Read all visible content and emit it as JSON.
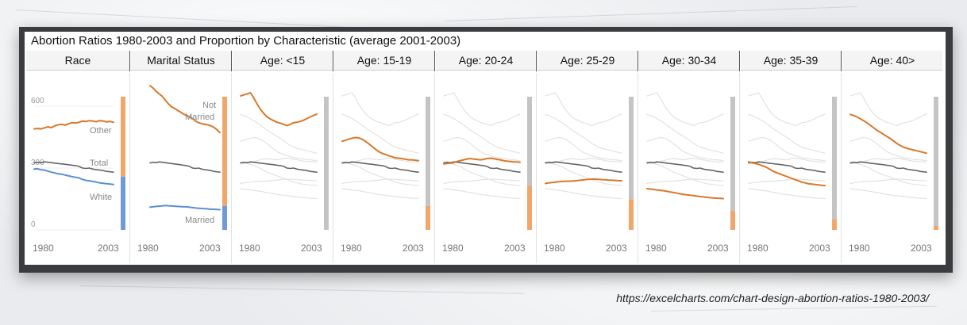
{
  "title": "Abortion Ratios 1980-2003 and Proportion by Characteristic (average 2001-2003)",
  "source_url": "https://excelcharts.com/chart-design-abortion-ratios-1980-2003/",
  "colors": {
    "highlight": "#d9782a",
    "white_series": "#5b8fd4",
    "total": "#666666",
    "faint": "#e2e2e2",
    "bar_grey": "#c4c4c4",
    "bar_orange": "#f2a66a",
    "bar_blue": "#6f9ad8"
  },
  "chart_data": {
    "type": "line",
    "x_start": 1980,
    "x_end": 2003,
    "ylim": [
      0,
      700
    ],
    "y_ticks": [
      "0",
      "300",
      "600"
    ],
    "x_tick_labels": [
      "1980",
      "2003"
    ],
    "panels": [
      {
        "header": "Race",
        "highlight": null,
        "proportion": [
          {
            "label": "",
            "color": "#f2a66a",
            "value": 0.6
          },
          {
            "label": "",
            "color": "#6f9ad8",
            "value": 0.4
          }
        ],
        "labels": [
          "Other",
          "Total",
          "White"
        ]
      },
      {
        "header": "Marital Status",
        "highlight": null,
        "proportion": [
          {
            "label": "",
            "color": "#f2a66a",
            "value": 0.82
          },
          {
            "label": "",
            "color": "#6f9ad8",
            "value": 0.18
          }
        ],
        "labels": [
          "Not",
          "Married",
          "Married"
        ]
      },
      {
        "header": "Age: <15",
        "highlight": "age_lt15",
        "proportion": [
          {
            "color": "#c4c4c4",
            "value": 1.0
          }
        ]
      },
      {
        "header": "Age: 15-19",
        "highlight": "age_15_19",
        "proportion": [
          {
            "color": "#c4c4c4",
            "value": 0.82
          },
          {
            "color": "#f2a66a",
            "value": 0.18
          }
        ]
      },
      {
        "header": "Age: 20-24",
        "highlight": "age_20_24",
        "proportion": [
          {
            "color": "#c4c4c4",
            "value": 0.67
          },
          {
            "color": "#f2a66a",
            "value": 0.33
          }
        ]
      },
      {
        "header": "Age: 25-29",
        "highlight": "age_25_29",
        "proportion": [
          {
            "color": "#c4c4c4",
            "value": 0.77
          },
          {
            "color": "#f2a66a",
            "value": 0.23
          }
        ]
      },
      {
        "header": "Age: 30-34",
        "highlight": "age_30_34",
        "proportion": [
          {
            "color": "#c4c4c4",
            "value": 0.86
          },
          {
            "color": "#f2a66a",
            "value": 0.14
          }
        ]
      },
      {
        "header": "Age: 35-39",
        "highlight": "age_35_39",
        "proportion": [
          {
            "color": "#c4c4c4",
            "value": 0.92
          },
          {
            "color": "#f2a66a",
            "value": 0.08
          }
        ]
      },
      {
        "header": "Age: 40>",
        "highlight": "age_40p",
        "proportion": [
          {
            "color": "#c4c4c4",
            "value": 0.97
          },
          {
            "color": "#f2a66a",
            "value": 0.03
          }
        ]
      }
    ],
    "series": {
      "other": [
        490,
        492,
        490,
        495,
        500,
        496,
        505,
        510,
        512,
        508,
        515,
        520,
        518,
        522,
        528,
        526,
        530,
        528,
        525,
        530,
        528,
        524,
        526,
        522
      ],
      "total": [
        325,
        328,
        326,
        330,
        328,
        326,
        324,
        322,
        320,
        318,
        316,
        314,
        312,
        308,
        300,
        298,
        300,
        295,
        292,
        290,
        288,
        284,
        282,
        280
      ],
      "white": [
        295,
        296,
        292,
        290,
        285,
        280,
        276,
        272,
        270,
        266,
        262,
        258,
        255,
        252,
        245,
        240,
        238,
        235,
        232,
        228,
        226,
        224,
        222,
        220
      ],
      "not_married": [
        700,
        688,
        672,
        660,
        648,
        630,
        612,
        598,
        590,
        580,
        572,
        562,
        555,
        548,
        540,
        528,
        520,
        515,
        512,
        510,
        505,
        498,
        486,
        472
      ],
      "married": [
        110,
        112,
        114,
        115,
        116,
        118,
        117,
        116,
        115,
        114,
        113,
        112,
        112,
        110,
        108,
        106,
        105,
        104,
        103,
        102,
        100,
        100,
        99,
        98
      ],
      "age_lt15": [
        650,
        655,
        660,
        665,
        640,
        610,
        585,
        565,
        548,
        538,
        530,
        522,
        518,
        512,
        506,
        512,
        520,
        522,
        526,
        532,
        540,
        548,
        555,
        562
      ],
      "age_15_19": [
        430,
        435,
        440,
        445,
        448,
        446,
        440,
        430,
        418,
        405,
        392,
        380,
        372,
        366,
        360,
        355,
        350,
        348,
        346,
        343,
        340,
        340,
        338,
        336
      ],
      "age_20_24": [
        320,
        322,
        324,
        326,
        332,
        336,
        340,
        344,
        346,
        344,
        342,
        340,
        342,
        346,
        348,
        346,
        342,
        340,
        336,
        334,
        332,
        330,
        330,
        328
      ],
      "age_25_29": [
        225,
        228,
        230,
        232,
        234,
        235,
        236,
        236,
        237,
        238,
        240,
        242,
        244,
        245,
        246,
        246,
        245,
        244,
        243,
        242,
        241,
        240,
        239,
        238
      ],
      "age_30_34": [
        200,
        198,
        196,
        194,
        192,
        190,
        187,
        184,
        181,
        178,
        175,
        172,
        170,
        168,
        166,
        164,
        162,
        160,
        158,
        156,
        155,
        154,
        153,
        152
      ],
      "age_35_39": [
        330,
        326,
        322,
        318,
        312,
        306,
        298,
        288,
        280,
        274,
        268,
        262,
        256,
        250,
        244,
        238,
        232,
        228,
        224,
        222,
        220,
        218,
        216,
        215
      ],
      "age_40p": [
        560,
        555,
        548,
        540,
        530,
        520,
        508,
        496,
        484,
        474,
        464,
        454,
        444,
        432,
        420,
        410,
        402,
        396,
        392,
        388,
        384,
        380,
        376,
        372
      ]
    }
  }
}
